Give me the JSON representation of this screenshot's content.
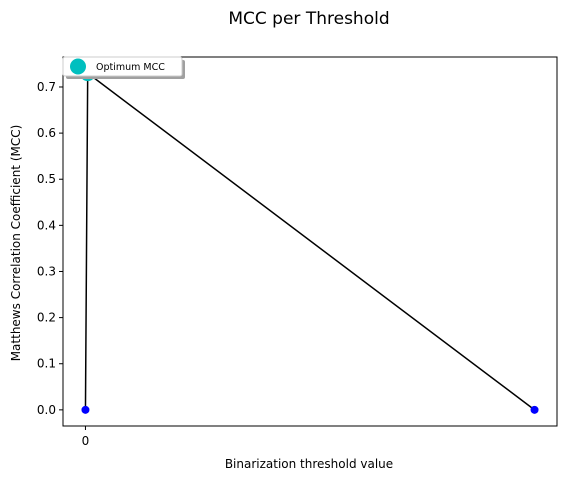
{
  "chart_data": {
    "type": "line",
    "title": "MCC per Threshold",
    "xlabel": "Binarization threshold value",
    "ylabel": "Matthews Correlation Coefficient (MCC)",
    "x_ticks": [
      "0"
    ],
    "y_ticks": [
      "0.0",
      "0.1",
      "0.2",
      "0.3",
      "0.4",
      "0.5",
      "0.6",
      "0.7"
    ],
    "xlim": [
      -0.05,
      1.05
    ],
    "ylim": [
      -0.035,
      0.765
    ],
    "line_color": "#000000",
    "marker_color": "#0000ff",
    "optimum_color": "#00bfbf",
    "series": [
      {
        "x": [
          0,
          0.005,
          1
        ],
        "y": [
          0.0,
          0.73,
          0.0
        ]
      }
    ],
    "points": [
      {
        "x": 0,
        "y": 0.0
      },
      {
        "x": 1,
        "y": 0.0
      }
    ],
    "optimum": {
      "x": 0.005,
      "y": 0.73
    },
    "legend": {
      "label": "Optimum MCC",
      "placement": "top-left"
    },
    "grid": false
  }
}
